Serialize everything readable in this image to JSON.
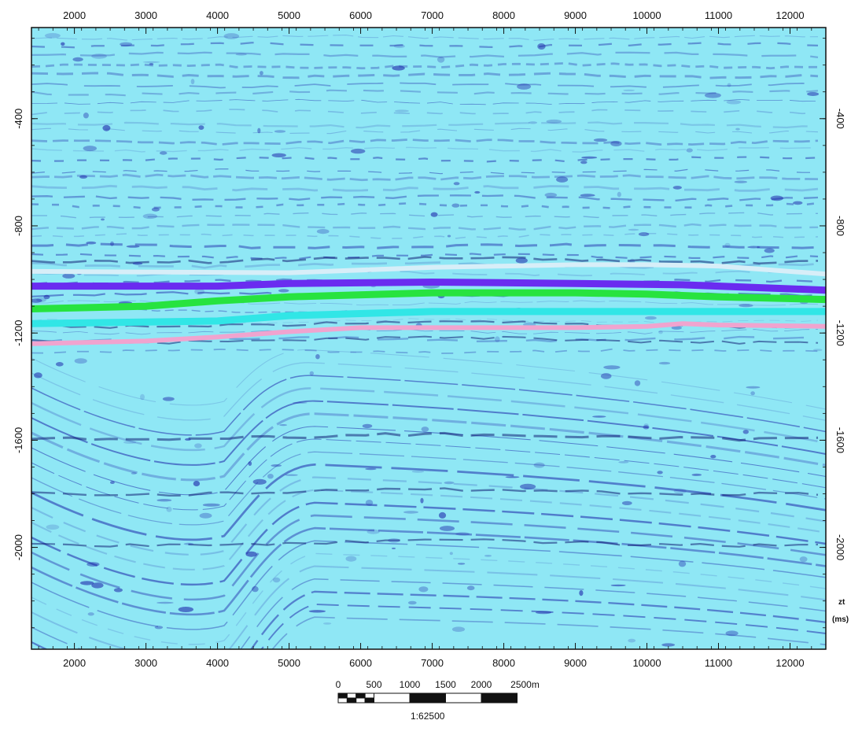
{
  "x_axis": {
    "ticks": [
      2000,
      3000,
      4000,
      5000,
      6000,
      7000,
      8000,
      9000,
      10000,
      11000,
      12000
    ],
    "range": [
      1400,
      12500
    ]
  },
  "y_axis": {
    "ticks_left": [
      -400,
      -800,
      -1200,
      -1600,
      -2000
    ],
    "ticks_right": [
      -400,
      -800,
      -1200,
      -1600,
      -2000
    ],
    "range": [
      -60,
      -2380
    ],
    "unit_symbol": "zt",
    "unit": "(ms)"
  },
  "colors": {
    "background": "#8fe7f5",
    "reflector": "#1b22a8",
    "reflector_strong": "#07106b",
    "horizons": {
      "white": "#d7eef8",
      "purple": "#6a2cf0",
      "green": "#27e33f",
      "cyan": "#31e6e6",
      "pink": "#f0a4cf"
    }
  },
  "horizons": [
    {
      "name": "white",
      "points": [
        [
          1400,
          -970
        ],
        [
          5000,
          -975
        ],
        [
          7000,
          -955
        ],
        [
          9000,
          -945
        ],
        [
          10000,
          -945
        ],
        [
          11000,
          -950
        ],
        [
          12500,
          -980
        ]
      ]
    },
    {
      "name": "purple",
      "points": [
        [
          1400,
          -1025
        ],
        [
          4000,
          -1025
        ],
        [
          5000,
          -1015
        ],
        [
          7000,
          -1010
        ],
        [
          9000,
          -1015
        ],
        [
          10500,
          -1020
        ],
        [
          12500,
          -1040
        ]
      ]
    },
    {
      "name": "green",
      "points": [
        [
          1400,
          -1110
        ],
        [
          3000,
          -1100
        ],
        [
          4000,
          -1080
        ],
        [
          5000,
          -1065
        ],
        [
          7000,
          -1050
        ],
        [
          9000,
          -1050
        ],
        [
          10000,
          -1055
        ],
        [
          11000,
          -1065
        ],
        [
          12500,
          -1075
        ]
      ]
    },
    {
      "name": "cyan",
      "points": [
        [
          1400,
          -1165
        ],
        [
          4000,
          -1155
        ],
        [
          5000,
          -1135
        ],
        [
          7000,
          -1120
        ],
        [
          9000,
          -1120
        ],
        [
          12500,
          -1120
        ]
      ]
    },
    {
      "name": "pink",
      "points": [
        [
          1400,
          -1240
        ],
        [
          3000,
          -1230
        ],
        [
          4000,
          -1215
        ],
        [
          5000,
          -1195
        ],
        [
          6000,
          -1180
        ],
        [
          9000,
          -1180
        ],
        [
          10000,
          -1175
        ],
        [
          10500,
          -1165
        ],
        [
          11000,
          -1170
        ],
        [
          12500,
          -1175
        ]
      ]
    }
  ],
  "scale_bar": {
    "labels": [
      "0",
      "500",
      "1000",
      "1500",
      "2000",
      "2500m"
    ],
    "ratio": "1:62500"
  }
}
